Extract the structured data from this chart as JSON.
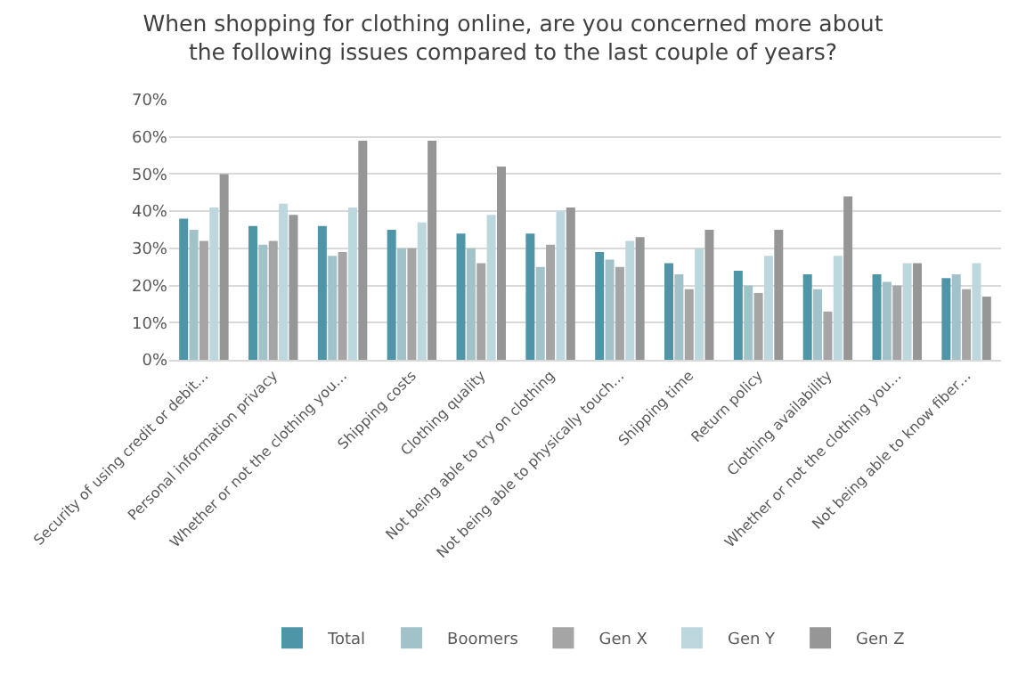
{
  "chart_data": {
    "type": "bar",
    "title": "When shopping for clothing online, are you concerned more about\nthe following issues compared to the last couple of years?",
    "categories": [
      "Security of using credit or debit…",
      "Personal information privacy",
      "Whether or not the clothing you…",
      "Shipping costs",
      "Clothing quality",
      "Not being able to try on clothing",
      "Not being able to physically touch…",
      "Shipping time",
      "Return policy",
      "Clothing availability",
      "Whether or not the clothing you…",
      "Not being able to know fiber…"
    ],
    "series": [
      {
        "name": "Total",
        "color": "#4e95a8",
        "values": [
          38,
          36,
          36,
          35,
          34,
          34,
          29,
          26,
          24,
          23,
          23,
          22
        ]
      },
      {
        "name": "Boomers",
        "color": "#a2c2ca",
        "values": [
          35,
          31,
          28,
          30,
          30,
          25,
          27,
          23,
          20,
          19,
          21,
          23
        ]
      },
      {
        "name": "Gen X",
        "color": "#a5a5a5",
        "values": [
          32,
          32,
          29,
          30,
          26,
          31,
          25,
          19,
          18,
          13,
          20,
          19
        ]
      },
      {
        "name": "Gen Y",
        "color": "#bcd8de",
        "values": [
          41,
          42,
          41,
          37,
          39,
          40,
          32,
          30,
          28,
          28,
          26,
          26
        ]
      },
      {
        "name": "Gen Z",
        "color": "#969696",
        "values": [
          50,
          39,
          59,
          59,
          52,
          41,
          33,
          35,
          35,
          44,
          26,
          17
        ]
      }
    ],
    "ylim": [
      0,
      70
    ],
    "yticks": [
      {
        "value": 0,
        "label": "0%"
      },
      {
        "value": 10,
        "label": "10%"
      },
      {
        "value": 20,
        "label": "20%"
      },
      {
        "value": 30,
        "label": "30%"
      },
      {
        "value": 40,
        "label": "40%"
      },
      {
        "value": 50,
        "label": "50%"
      },
      {
        "value": 60,
        "label": "60%"
      },
      {
        "value": 70,
        "label": "70%"
      }
    ],
    "grid": "y",
    "legend": "bottom"
  }
}
